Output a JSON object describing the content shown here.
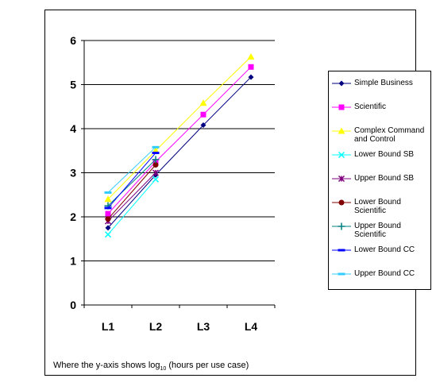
{
  "chart_data": {
    "type": "line",
    "categories": [
      "L1",
      "L2",
      "L3",
      "L4"
    ],
    "ylim": [
      0,
      6
    ],
    "yticks": [
      0,
      1,
      2,
      3,
      4,
      5,
      6
    ],
    "grid": true,
    "legend_position": "right",
    "series": [
      {
        "name": "Simple Business",
        "color": "#000080",
        "marker": "diamond",
        "values": [
          1.75,
          2.95,
          4.08,
          5.17
        ]
      },
      {
        "name": "Scientific",
        "color": "#FF00FF",
        "marker": "square",
        "values": [
          2.07,
          3.25,
          4.32,
          5.4
        ]
      },
      {
        "name": "Complex Command and Control",
        "color": "#FFFF00",
        "marker": "triangle",
        "values": [
          2.4,
          3.5,
          4.58,
          5.63
        ]
      },
      {
        "name": "Lower Bound SB",
        "color": "#00FFFF",
        "marker": "x",
        "values": [
          1.6,
          2.85,
          null,
          null
        ]
      },
      {
        "name": "Upper Bound SB",
        "color": "#800080",
        "marker": "star",
        "values": [
          1.9,
          3.0,
          null,
          null
        ]
      },
      {
        "name": "Lower Bound Scientific",
        "color": "#800000",
        "marker": "circle",
        "values": [
          1.95,
          3.18,
          null,
          null
        ]
      },
      {
        "name": "Upper Bound Scientific",
        "color": "#008080",
        "marker": "plus",
        "values": [
          2.25,
          3.3,
          null,
          null
        ]
      },
      {
        "name": "Lower Bound CC",
        "color": "#0000FF",
        "marker": "dash",
        "values": [
          2.2,
          3.45,
          null,
          null
        ]
      },
      {
        "name": "Upper Bound CC",
        "color": "#33CCFF",
        "marker": "dash",
        "values": [
          2.55,
          3.58,
          null,
          null
        ]
      }
    ],
    "note": {
      "prefix": "Where the y-axis shows log",
      "subscript": "10",
      "suffix": " (hours per use case)"
    }
  }
}
